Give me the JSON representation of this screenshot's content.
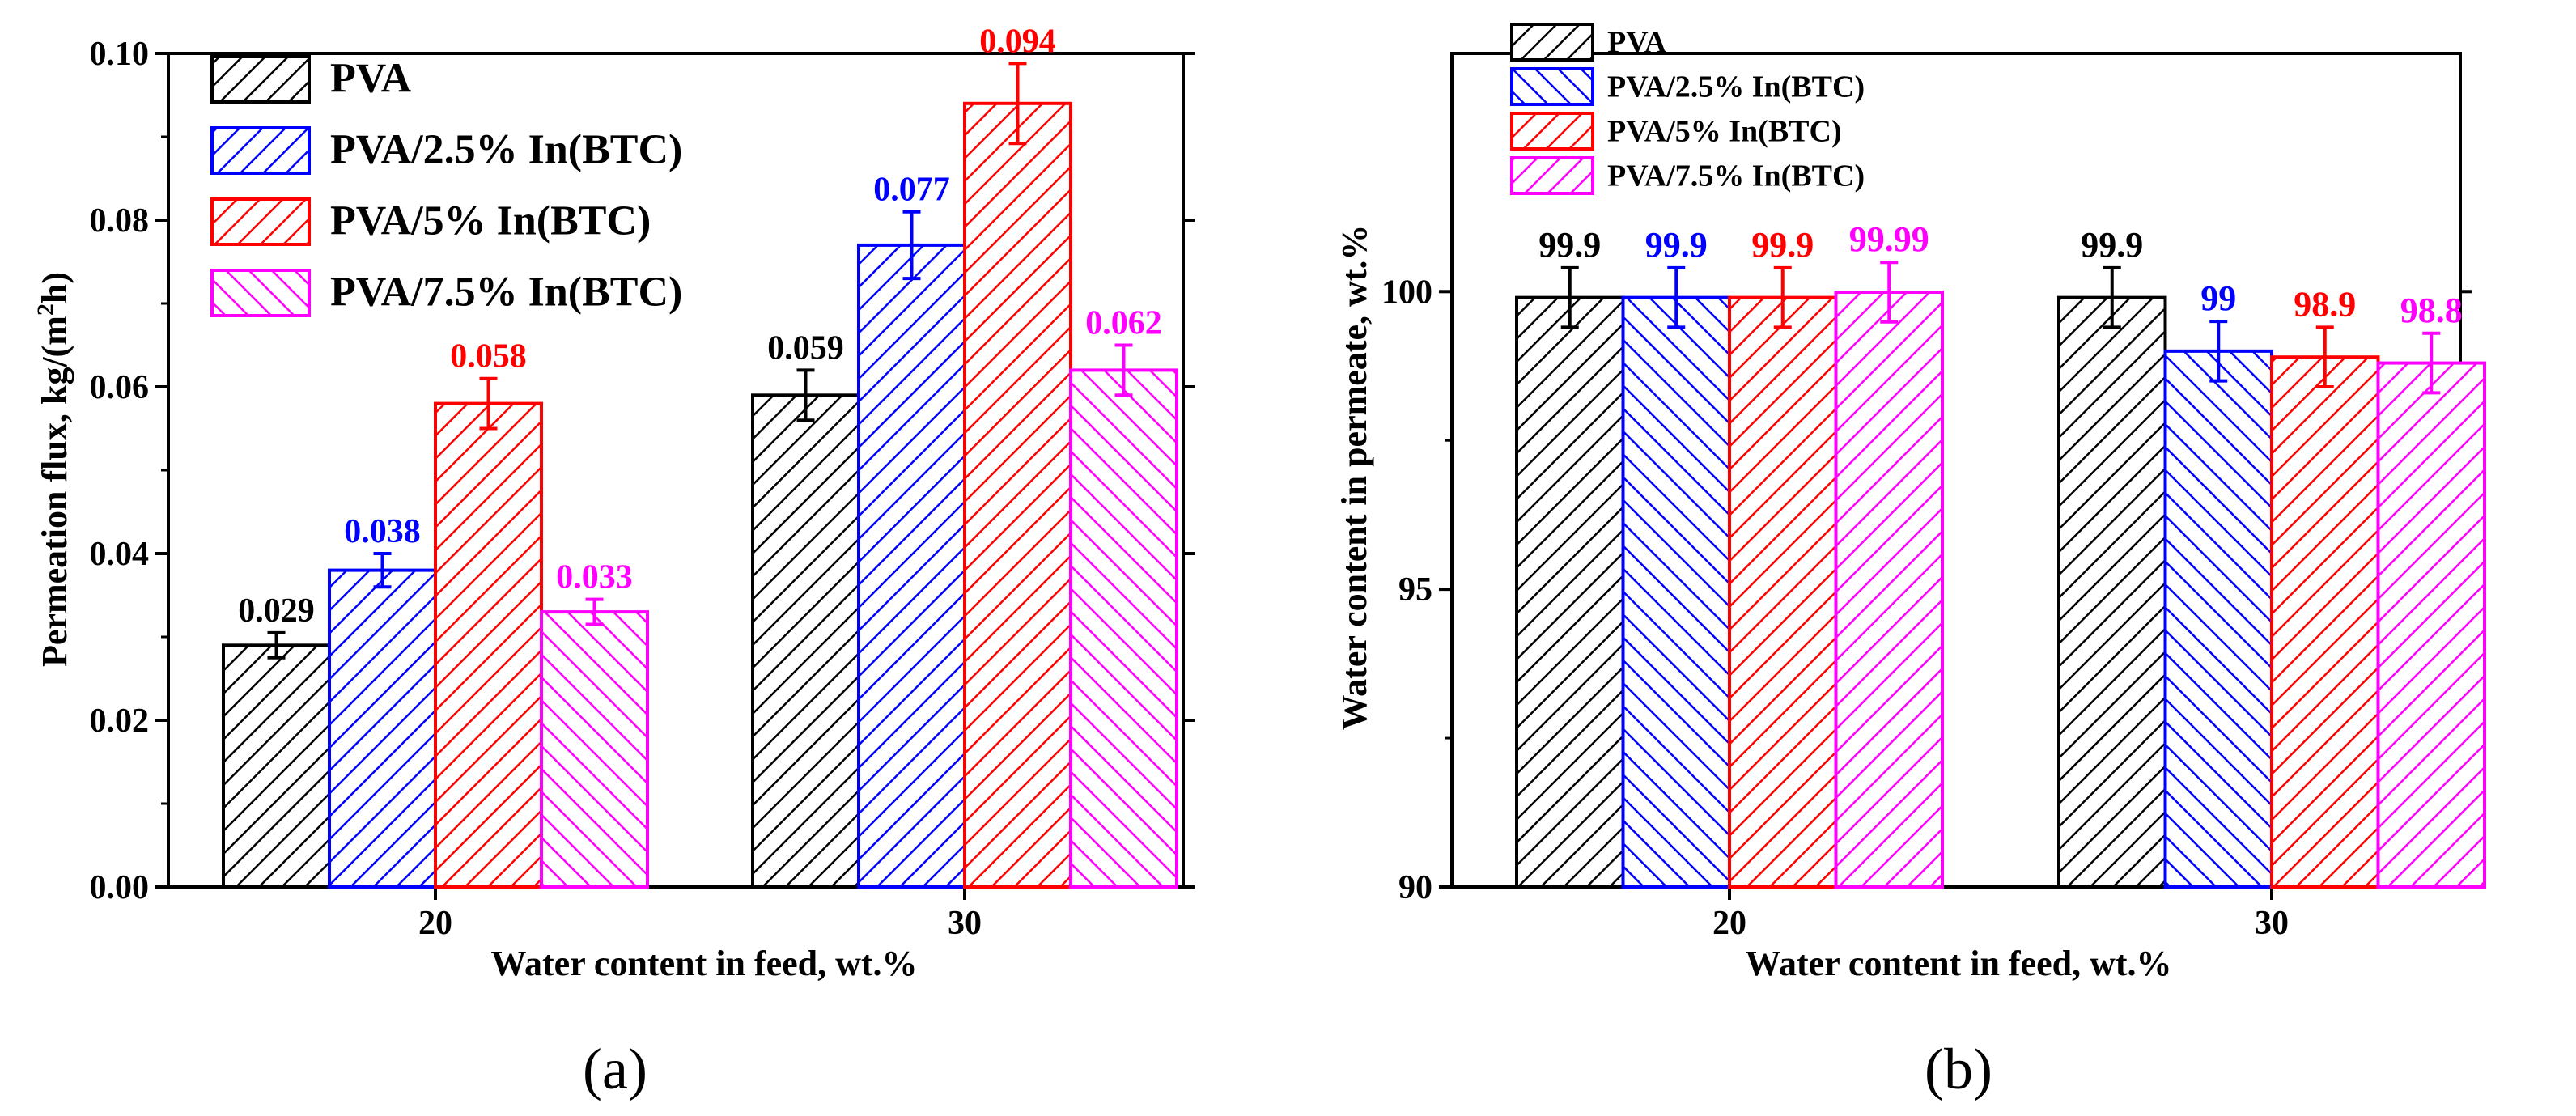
{
  "chart_data": [
    {
      "type": "bar",
      "panel_label": "(a)",
      "xlabel": "Water content in feed, wt.%",
      "ylabel_prefix": "Permeation flux, kg/(m",
      "ylabel_sup": "2",
      "ylabel_suffix": "h)",
      "categories": [
        "20",
        "30"
      ],
      "ylim": [
        0,
        0.1
      ],
      "yticks": [
        0.0,
        0.02,
        0.04,
        0.06,
        0.08,
        0.1
      ],
      "ytick_labels": [
        "0.00",
        "0.02",
        "0.04",
        "0.06",
        "0.08",
        "0.10"
      ],
      "legend_position": "top-left",
      "series": [
        {
          "name": "PVA",
          "color": "#000000",
          "pattern": "diag-right",
          "values": [
            0.029,
            0.059
          ],
          "errors": [
            0.0015,
            0.003
          ],
          "labels": [
            "0.029",
            "0.059"
          ],
          "label_colors": [
            "#000000",
            "#000000"
          ]
        },
        {
          "name": "PVA/2.5% In(BTC)",
          "color": "#0000ff",
          "pattern": "diag-right",
          "values": [
            0.038,
            0.077
          ],
          "errors": [
            0.002,
            0.004
          ],
          "labels": [
            "0.038",
            "0.077"
          ],
          "label_colors": [
            "#0000ff",
            "#0000ff"
          ]
        },
        {
          "name": "PVA/5% In(BTC)",
          "color": "#ff0000",
          "pattern": "diag-right",
          "values": [
            0.058,
            0.094
          ],
          "errors": [
            0.003,
            0.0048
          ],
          "labels": [
            "0.058",
            "0.094"
          ],
          "label_colors": [
            "#ff0000",
            "#ff0000"
          ]
        },
        {
          "name": "PVA/7.5% In(BTC)",
          "color": "#ff00ff",
          "pattern": "diag-left",
          "values": [
            0.033,
            0.062
          ],
          "errors": [
            0.0015,
            0.003
          ],
          "labels": [
            "0.033",
            "0.062"
          ],
          "label_colors": [
            "#ff00ff",
            "#ff00ff"
          ]
        }
      ]
    },
    {
      "type": "bar",
      "panel_label": "(b)",
      "xlabel": "Water content in feed, wt.%",
      "ylabel": "Water content in permeate, wt.%",
      "categories": [
        "20",
        "30"
      ],
      "ylim": [
        90,
        104
      ],
      "yticks": [
        90,
        95,
        100
      ],
      "ytick_labels": [
        "90",
        "95",
        "100"
      ],
      "legend_position": "top-left",
      "series": [
        {
          "name": "PVA",
          "color": "#000000",
          "pattern": "diag-right",
          "values": [
            99.9,
            99.9
          ],
          "errors": [
            0.5,
            0.5
          ],
          "labels": [
            "99.9",
            "99.9"
          ],
          "label_colors": [
            "#000000",
            "#000000"
          ]
        },
        {
          "name": "PVA/2.5% In(BTC)",
          "color": "#0000ff",
          "pattern": "diag-left",
          "values": [
            99.9,
            99.0
          ],
          "errors": [
            0.5,
            0.5
          ],
          "labels": [
            "99.9",
            "99"
          ],
          "label_colors": [
            "#0000ff",
            "#0000ff"
          ]
        },
        {
          "name": "PVA/5% In(BTC)",
          "color": "#ff0000",
          "pattern": "diag-right",
          "values": [
            99.9,
            98.9
          ],
          "errors": [
            0.5,
            0.5
          ],
          "labels": [
            "99.9",
            "98.9"
          ],
          "label_colors": [
            "#ff0000",
            "#ff0000"
          ]
        },
        {
          "name": "PVA/7.5% In(BTC)",
          "color": "#ff00ff",
          "pattern": "diag-right",
          "values": [
            99.99,
            98.8
          ],
          "errors": [
            0.5,
            0.5
          ],
          "labels": [
            "99.99",
            "98.8"
          ],
          "label_colors": [
            "#ff00ff",
            "#ff00ff"
          ]
        }
      ]
    }
  ]
}
